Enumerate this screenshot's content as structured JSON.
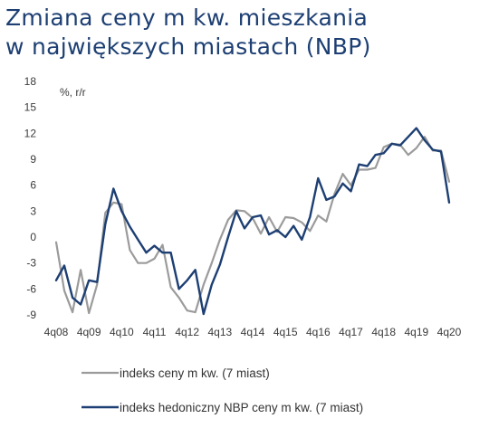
{
  "title": {
    "line1": "Zmiana ceny m kw. mieszkania",
    "line2": "w największych miastach (NBP)"
  },
  "chart_data": {
    "type": "line",
    "unit_label": "%, r/r",
    "x_ticks": [
      "4q08",
      "4q09",
      "4q10",
      "4q11",
      "4q12",
      "4q13",
      "4q14",
      "4q15",
      "4q16",
      "4q17",
      "4q18",
      "4q19",
      "4q20"
    ],
    "x_range": [
      "4q08",
      "4q20"
    ],
    "ylim": [
      -9,
      18
    ],
    "y_ticks": [
      -9,
      -6,
      -3,
      0,
      3,
      6,
      9,
      12,
      15,
      18
    ],
    "grid": false,
    "legend_position": "bottom",
    "series": [
      {
        "name": "indeks ceny m kw. (7 miast)",
        "color": "#9b9b9b",
        "x": [
          "4q08",
          "1q09",
          "2q09",
          "3q09",
          "4q09",
          "1q10",
          "2q10",
          "3q10",
          "4q10",
          "1q11",
          "2q11",
          "3q11",
          "4q11",
          "1q12",
          "2q12",
          "3q12",
          "4q12",
          "1q13",
          "2q13",
          "3q13",
          "4q13",
          "1q14",
          "2q14",
          "3q14",
          "4q14",
          "1q15",
          "2q15",
          "3q15",
          "4q15",
          "1q16",
          "2q16",
          "3q16",
          "4q16",
          "1q17",
          "2q17",
          "3q17",
          "4q17",
          "1q18",
          "2q18",
          "3q18",
          "4q18",
          "1q19",
          "2q19",
          "3q19",
          "4q19",
          "1q20",
          "2q20",
          "3q20",
          "4q20"
        ],
        "values": [
          -0.6,
          -6.2,
          -8.7,
          -3.8,
          -8.8,
          -5.5,
          2.8,
          4.0,
          3.8,
          -1.5,
          -3.0,
          -3.0,
          -2.5,
          -0.9,
          -5.8,
          -7.0,
          -8.5,
          -8.7,
          -5.5,
          -3.0,
          -0.3,
          2.0,
          3.1,
          3.0,
          2.2,
          0.4,
          2.3,
          0.6,
          2.3,
          2.2,
          1.7,
          0.7,
          2.5,
          1.8,
          5.0,
          7.3,
          6.0,
          7.8,
          7.8,
          8.0,
          10.4,
          10.8,
          10.7,
          9.5,
          10.3,
          11.6,
          10.0,
          10.0,
          6.4
        ]
      },
      {
        "name": "indeks hedoniczny NBP ceny m kw. (7 miast)",
        "color": "#1d3f73",
        "x": [
          "4q08",
          "1q09",
          "2q09",
          "3q09",
          "4q09",
          "1q10",
          "2q10",
          "3q10",
          "4q10",
          "1q11",
          "2q11",
          "3q11",
          "4q11",
          "1q12",
          "2q12",
          "3q12",
          "4q12",
          "1q13",
          "2q13",
          "3q13",
          "4q13",
          "1q14",
          "2q14",
          "3q14",
          "4q14",
          "1q15",
          "2q15",
          "3q15",
          "4q15",
          "1q16",
          "2q16",
          "3q16",
          "4q16",
          "1q17",
          "2q17",
          "3q17",
          "4q17",
          "1q18",
          "2q18",
          "3q18",
          "4q18",
          "1q19",
          "2q19",
          "3q19",
          "4q19",
          "1q20",
          "2q20",
          "3q20",
          "4q20"
        ],
        "values": [
          -5.0,
          -3.3,
          -7.0,
          -7.8,
          -5.0,
          -5.2,
          1.5,
          5.6,
          3.0,
          1.2,
          -0.3,
          -1.8,
          -1.0,
          -1.8,
          -1.8,
          -6.0,
          -5.0,
          -3.8,
          -8.9,
          -5.5,
          -3.2,
          0.0,
          3.0,
          1.0,
          2.3,
          2.5,
          0.3,
          0.8,
          0.0,
          1.3,
          -0.3,
          2.3,
          6.8,
          4.3,
          4.7,
          6.2,
          5.3,
          8.4,
          8.2,
          9.5,
          9.7,
          10.8,
          10.6,
          11.6,
          12.6,
          11.2,
          10.1,
          9.9,
          4.0
        ]
      }
    ]
  }
}
